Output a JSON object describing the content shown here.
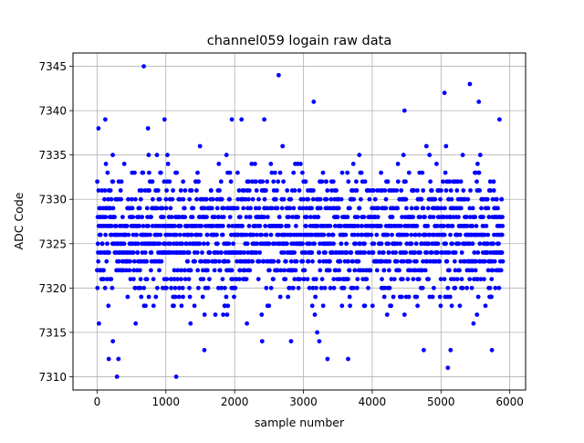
{
  "chart_data": {
    "type": "scatter",
    "title": "channel059 logain raw data",
    "xlabel": "sample number",
    "ylabel": "ADC Code",
    "xlim": [
      -350,
      6230
    ],
    "ylim": [
      7308.5,
      7346.5
    ],
    "xticks": [
      0,
      1000,
      2000,
      3000,
      4000,
      5000,
      6000
    ],
    "yticks": [
      7310,
      7315,
      7320,
      7325,
      7330,
      7335,
      7340,
      7345
    ],
    "grid": true,
    "marker_color": "#0000ff",
    "sample_count": 5900,
    "series": [
      {
        "values_note_range": [
          7310,
          7345
        ],
        "band": {
          "x": [
            0,
            5900
          ],
          "y": [
            7316,
            7336
          ]
        },
        "outliers": [
          {
            "x": 20,
            "y": 7338
          },
          {
            "x": 120,
            "y": 7339
          },
          {
            "x": 170,
            "y": 7312
          },
          {
            "x": 230,
            "y": 7314
          },
          {
            "x": 290,
            "y": 7310
          },
          {
            "x": 310,
            "y": 7312
          },
          {
            "x": 680,
            "y": 7345
          },
          {
            "x": 740,
            "y": 7338
          },
          {
            "x": 980,
            "y": 7339
          },
          {
            "x": 1150,
            "y": 7310
          },
          {
            "x": 1560,
            "y": 7313
          },
          {
            "x": 1960,
            "y": 7339
          },
          {
            "x": 2100,
            "y": 7339
          },
          {
            "x": 2400,
            "y": 7314
          },
          {
            "x": 2430,
            "y": 7339
          },
          {
            "x": 2640,
            "y": 7344
          },
          {
            "x": 2820,
            "y": 7314
          },
          {
            "x": 3150,
            "y": 7341
          },
          {
            "x": 3200,
            "y": 7315
          },
          {
            "x": 3230,
            "y": 7314
          },
          {
            "x": 3350,
            "y": 7312
          },
          {
            "x": 3650,
            "y": 7312
          },
          {
            "x": 4470,
            "y": 7340
          },
          {
            "x": 4750,
            "y": 7313
          },
          {
            "x": 5050,
            "y": 7342
          },
          {
            "x": 5100,
            "y": 7311
          },
          {
            "x": 5140,
            "y": 7313
          },
          {
            "x": 5420,
            "y": 7343
          },
          {
            "x": 5550,
            "y": 7341
          },
          {
            "x": 5740,
            "y": 7313
          },
          {
            "x": 5850,
            "y": 7339
          }
        ]
      }
    ]
  }
}
